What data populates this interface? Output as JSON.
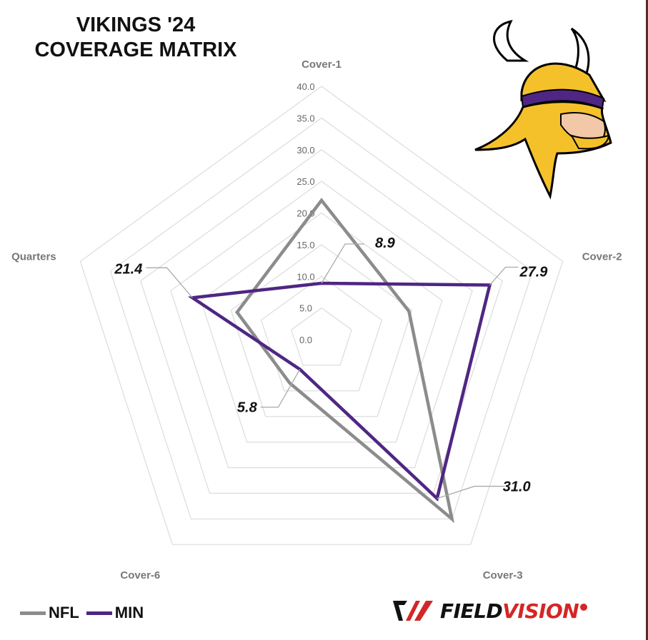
{
  "title_lines": [
    "VIKINGS '24",
    "COVERAGE MATRIX"
  ],
  "colors": {
    "NFL": "#8c8c8c",
    "MIN": "#4f2683",
    "grid": "#dcdcdc",
    "helmet_gold": "#f5c12a",
    "helmet_purple": "#4f2683"
  },
  "chart_data": {
    "type": "radar",
    "axes": [
      "Cover-1",
      "Cover-2",
      "Cover-3",
      "Cover-6",
      "Quarters"
    ],
    "rticks": [
      "0.0",
      "5.0",
      "10.0",
      "15.0",
      "20.0",
      "25.0",
      "30.0",
      "35.0",
      "40.0"
    ],
    "rlim": [
      0,
      40
    ],
    "series": [
      {
        "name": "NFL",
        "values": [
          22.0,
          14.5,
          35.0,
          8.5,
          14.0
        ]
      },
      {
        "name": "MIN",
        "values": [
          8.9,
          27.9,
          31.0,
          5.8,
          21.4
        ]
      }
    ],
    "data_labels": [
      "8.9",
      "27.9",
      "31.0",
      "5.8",
      "21.4"
    ],
    "legend_position": "bottom-left"
  },
  "legend": [
    {
      "label": "NFL"
    },
    {
      "label": "MIN"
    }
  ],
  "brand": {
    "field": "FIELD",
    "vision": "VISION",
    "logo_icon": "fieldvision-logo-icon"
  },
  "team_logo_icon": "vikings-helmet-logo"
}
